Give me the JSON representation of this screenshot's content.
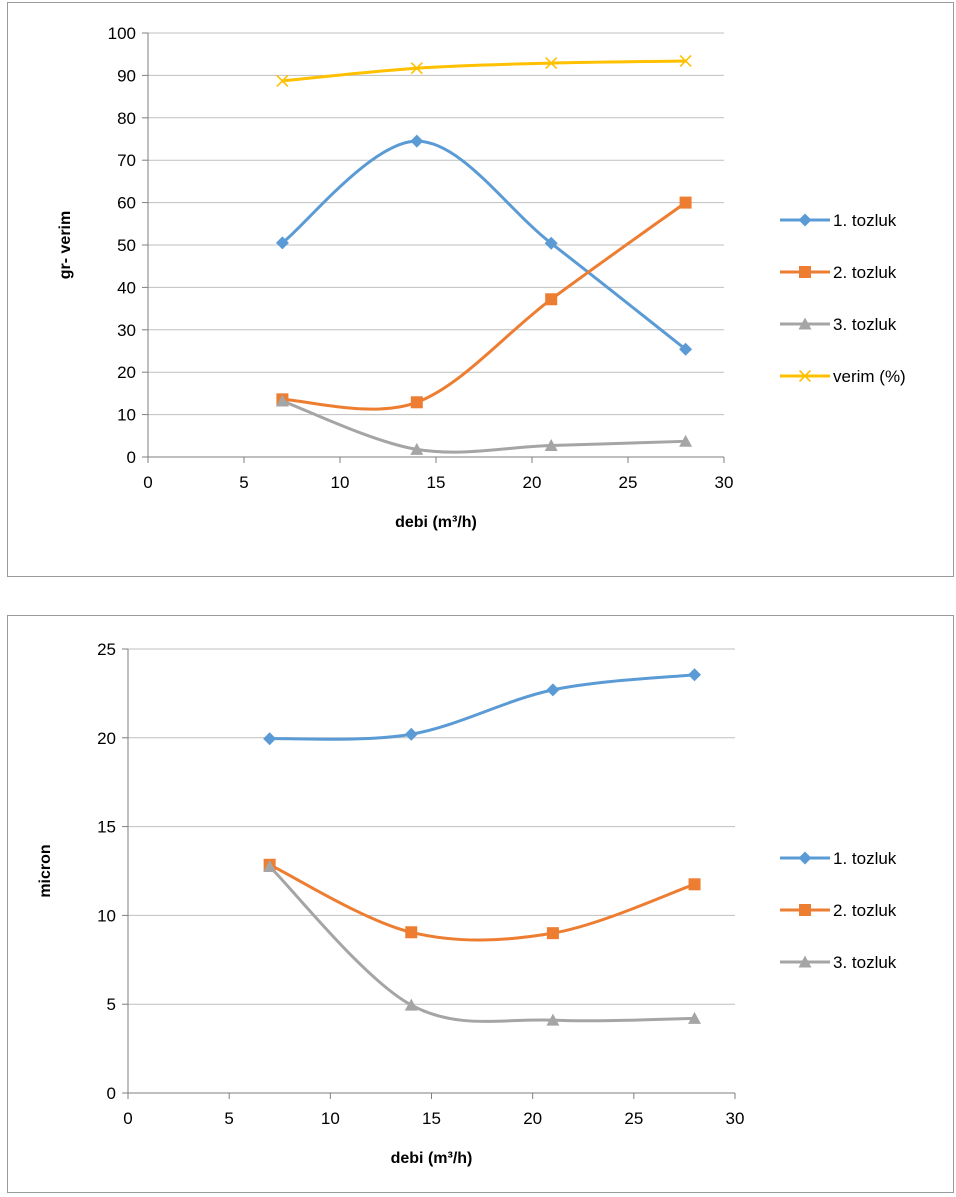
{
  "chart_data": [
    {
      "type": "line",
      "smooth": true,
      "title": "",
      "xlabel": "debi (m³/h)",
      "ylabel": "gr- verim",
      "xlim": [
        0,
        30
      ],
      "ylim": [
        0,
        100
      ],
      "xticks": [
        0,
        5,
        10,
        15,
        20,
        25,
        30
      ],
      "yticks": [
        0,
        10,
        20,
        30,
        40,
        50,
        60,
        70,
        80,
        90,
        100
      ],
      "grid": "horizontal",
      "legend": "right",
      "x": [
        7,
        14,
        21,
        28
      ],
      "series": [
        {
          "name": "1. tozluk",
          "values": [
            50.5,
            74.5,
            50.4,
            25.4
          ],
          "color": "#5B9BD5",
          "marker": "diamond"
        },
        {
          "name": "2. tozluk",
          "values": [
            13.6,
            12.9,
            37.2,
            60.0
          ],
          "color": "#ED7D31",
          "marker": "square"
        },
        {
          "name": "3. tozluk",
          "values": [
            13.2,
            1.8,
            2.7,
            3.7
          ],
          "color": "#A5A5A5",
          "marker": "triangle"
        },
        {
          "name": "verim (%)",
          "values": [
            88.7,
            91.7,
            92.9,
            93.4
          ],
          "color": "#FFC000",
          "marker": "x"
        }
      ]
    },
    {
      "type": "line",
      "smooth": true,
      "title": "",
      "xlabel": "debi (m³/h)",
      "ylabel": "micron",
      "xlim": [
        0,
        30
      ],
      "ylim": [
        0,
        25
      ],
      "xticks": [
        0,
        5,
        10,
        15,
        20,
        25,
        30
      ],
      "yticks": [
        0,
        5,
        10,
        15,
        20,
        25
      ],
      "grid": "horizontal",
      "legend": "right",
      "x": [
        7,
        14,
        21,
        28
      ],
      "series": [
        {
          "name": "1. tozluk",
          "values": [
            19.95,
            20.2,
            22.7,
            23.55
          ],
          "color": "#5B9BD5",
          "marker": "diamond"
        },
        {
          "name": "2. tozluk",
          "values": [
            12.85,
            9.05,
            9.0,
            11.75
          ],
          "color": "#ED7D31",
          "marker": "square"
        },
        {
          "name": "3. tozluk",
          "values": [
            12.75,
            4.95,
            4.1,
            4.2
          ],
          "color": "#A5A5A5",
          "marker": "triangle"
        }
      ]
    }
  ]
}
